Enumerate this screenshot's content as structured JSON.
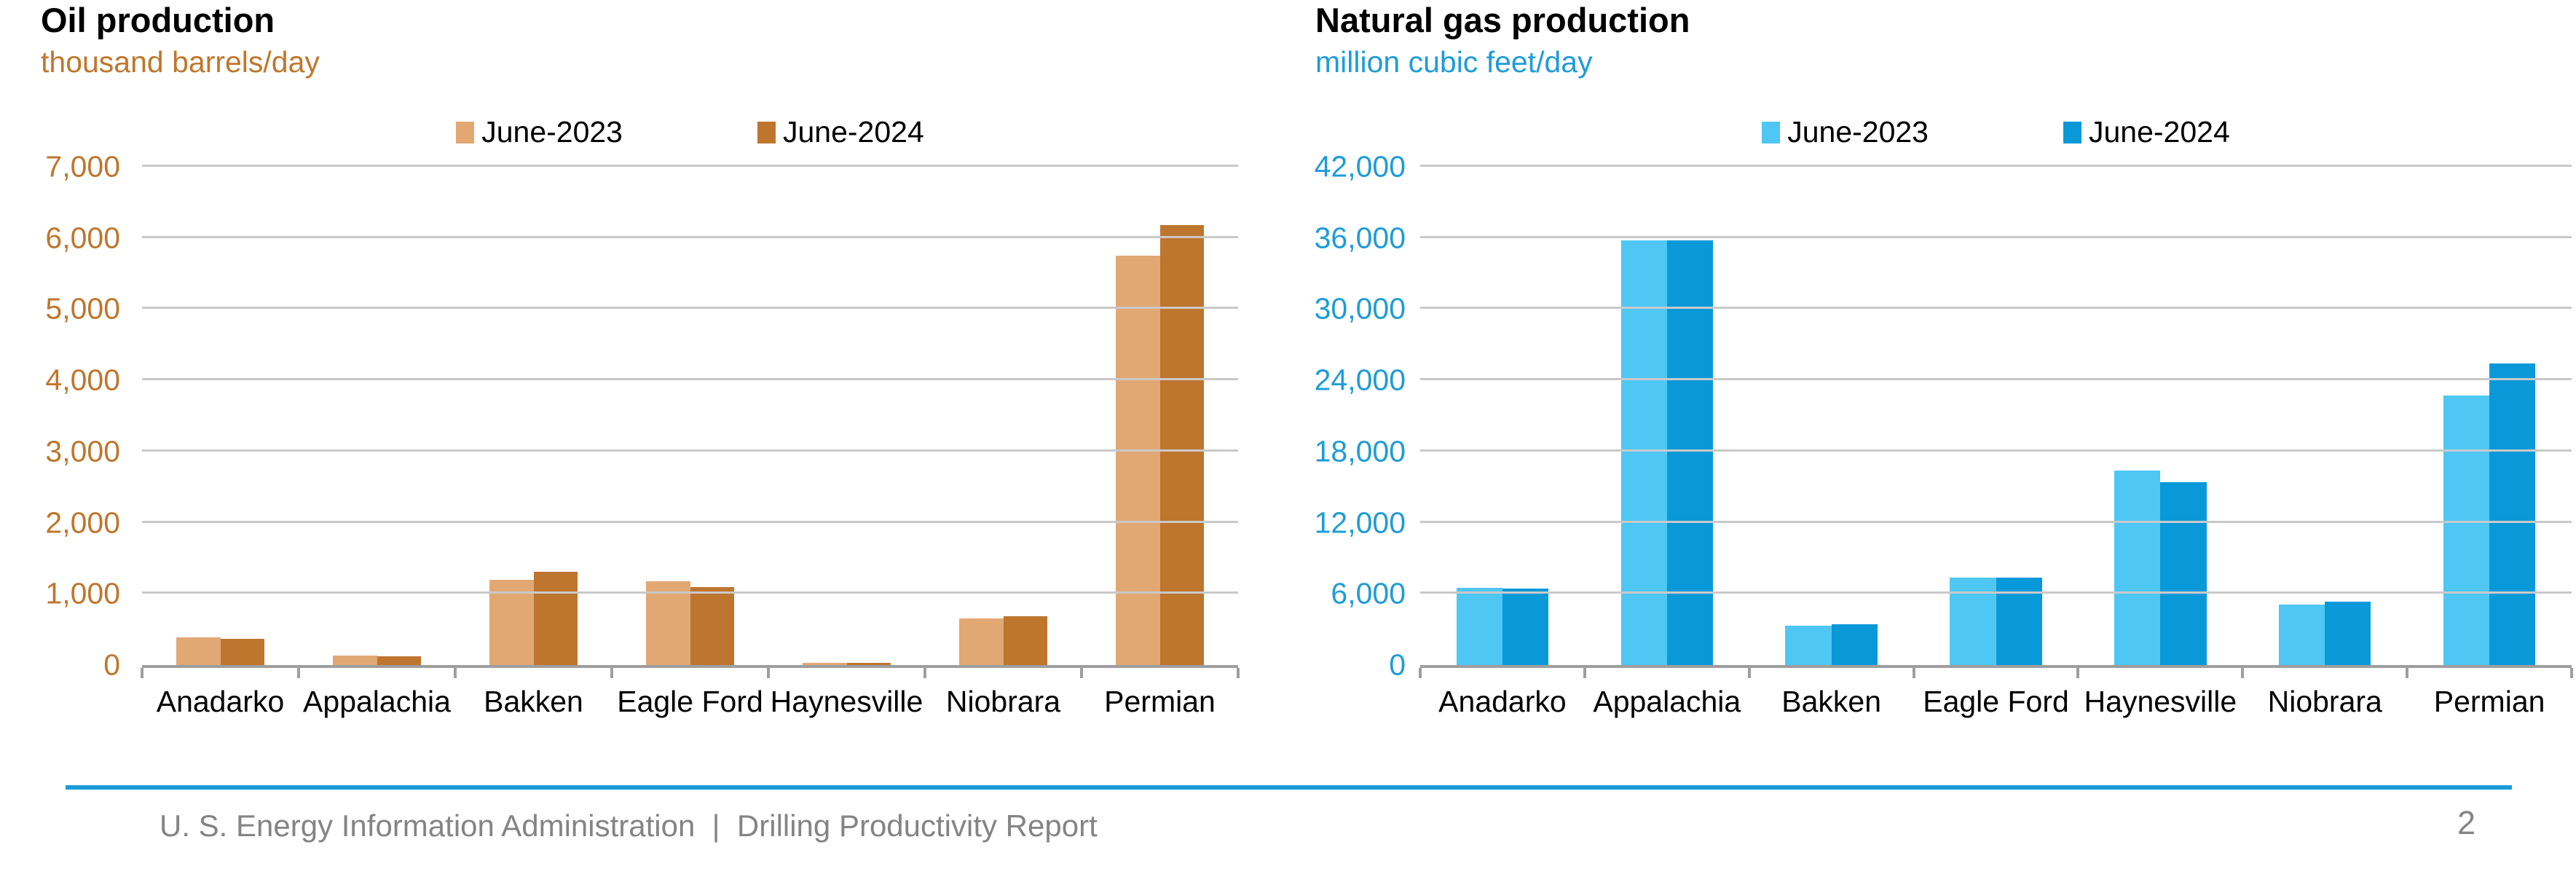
{
  "footer": {
    "text": "U. S. Energy Information Administration  |  Drilling Productivity Report",
    "page_number": "2",
    "line_color": "#1b9cd8"
  },
  "chart_data": [
    {
      "type": "bar",
      "title": "Oil production",
      "subtitle": "thousand barrels/day",
      "ylabel": "thousand barrels/day",
      "categories": [
        "Anadarko",
        "Appalachia",
        "Bakken",
        "Eagle Ford",
        "Haynesville",
        "Niobrara",
        "Permian"
      ],
      "series": [
        {
          "name": "June-2023",
          "color": "#e2a873",
          "values": [
            390,
            130,
            1200,
            1180,
            30,
            660,
            5750
          ]
        },
        {
          "name": "June-2024",
          "color": "#be752e",
          "values": [
            370,
            120,
            1310,
            1100,
            30,
            690,
            6180
          ]
        }
      ],
      "ylim": [
        0,
        7000
      ],
      "ytick_step": 1000,
      "ytick_labels": [
        "0",
        "1,000",
        "2,000",
        "3,000",
        "4,000",
        "5,000",
        "6,000",
        "7,000"
      ],
      "grid": true,
      "legend_position": "top",
      "axis_label_color": "#c0762c"
    },
    {
      "type": "bar",
      "title": "Natural gas production",
      "subtitle": "million cubic feet/day",
      "ylabel": "million cubic feet/day",
      "categories": [
        "Anadarko",
        "Appalachia",
        "Bakken",
        "Eagle Ford",
        "Haynesville",
        "Niobrara",
        "Permian"
      ],
      "series": [
        {
          "name": "June-2023",
          "color": "#4ec7f5",
          "values": [
            6500,
            35800,
            3300,
            7400,
            16400,
            5100,
            22700
          ]
        },
        {
          "name": "June-2024",
          "color": "#0999d8",
          "values": [
            6450,
            35800,
            3450,
            7350,
            15400,
            5350,
            25400
          ]
        }
      ],
      "ylim": [
        0,
        42000
      ],
      "ytick_step": 6000,
      "ytick_labels": [
        "0",
        "6,000",
        "12,000",
        "18,000",
        "24,000",
        "30,000",
        "36,000",
        "42,000"
      ],
      "grid": true,
      "legend_position": "top",
      "axis_label_color": "#1e9cd9"
    }
  ]
}
